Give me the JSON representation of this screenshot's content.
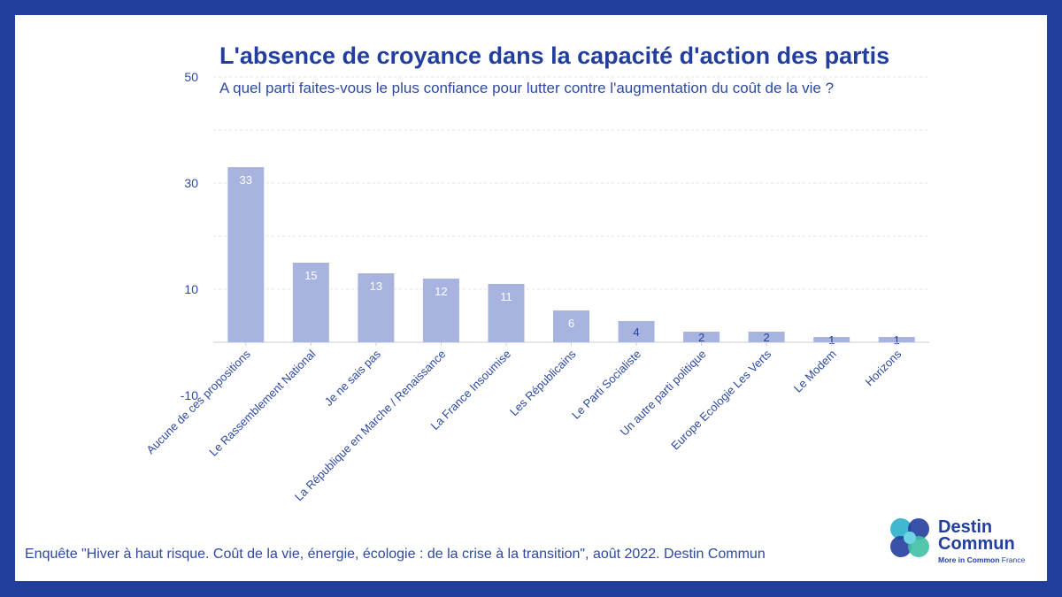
{
  "colors": {
    "frame": "#233f9e",
    "bar": "#a8b4df",
    "title": "#233f9e",
    "text": "#2d4a9e",
    "grid": "#e3e6ef",
    "axis": "#c9cdd8"
  },
  "chart_data": {
    "type": "bar",
    "title": "L'absence de croyance dans la capacité d'action des partis",
    "subtitle": "A quel parti faites-vous le plus confiance pour lutter contre l'augmentation du coût de la vie ?",
    "categories": [
      "Aucune de ces propositions",
      "Le Rassemblement National",
      "Je ne sais pas",
      "La République en Marche / Renaissance",
      "La France Insoumise",
      "Les Républicains",
      "Le Parti Socialiste",
      "Un autre parti politique",
      "Europe Ecologie Les Verts",
      "Le Modem",
      "Horizons"
    ],
    "values": [
      33,
      15,
      13,
      12,
      11,
      6,
      4,
      2,
      2,
      1,
      1
    ],
    "data_labels": [
      "33",
      "15",
      "13",
      "12",
      "11",
      "6",
      "4",
      "2",
      "2",
      "1",
      "1"
    ],
    "ylim": [
      -10,
      50
    ],
    "yticks": [
      -10,
      10,
      30,
      50
    ],
    "ytick_labels": [
      "-10",
      "10",
      "30",
      "50"
    ],
    "gridlines": [
      10,
      20,
      30,
      40,
      50
    ],
    "xlabel": "",
    "ylabel": ""
  },
  "footer": "Enquête \"Hiver à haut risque. Coût de la vie, énergie, écologie : de la crise à la transition\", août 2022. Destin Commun",
  "logo": {
    "line1": "Destin",
    "line2": "Commun",
    "tag_bold": "More in Common",
    "tag_rest": " France"
  }
}
